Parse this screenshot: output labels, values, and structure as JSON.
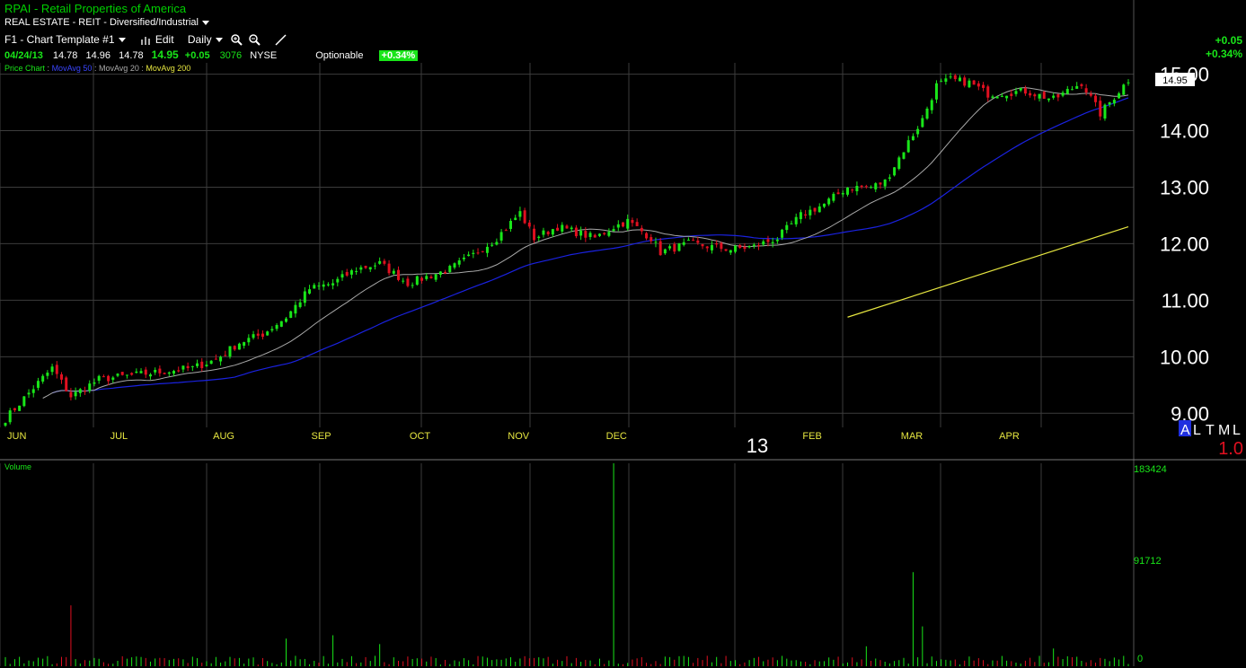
{
  "header": {
    "title": "RPAI - Retail Properties of America",
    "sector": "REAL ESTATE - REIT - Diversified/Industrial",
    "template": "F1 - Chart Template #1",
    "edit": "Edit",
    "period": "Daily",
    "quote": {
      "date": "04/24/13",
      "open": "14.78",
      "high": "14.96",
      "low": "14.78",
      "last": "14.95",
      "change": "+0.05",
      "volume": "3076",
      "exchange": "NYSE",
      "optionable": "Optionable",
      "pct_badge": "+0.34%"
    },
    "indicators": {
      "price_chart": "Price Chart",
      "sep": ":",
      "ma50": "MovAvg 50",
      "ma20": "MovAvg 20",
      "ma200": "MovAvg 200"
    },
    "right_change": "+0.05",
    "right_pct": "+0.34%"
  },
  "price_panel": {
    "current_label": "14.95",
    "year_label": "13",
    "timeframes": [
      "A",
      "L",
      "T",
      "M",
      "L"
    ],
    "scale_label": "1.0"
  },
  "volume_panel": {
    "label": "Volume",
    "max_label": "183424",
    "mid_label": "91712",
    "zero_label": "0"
  },
  "colors": {
    "up": "#19e619",
    "down": "#e01020",
    "ma20": "#a8a8a8",
    "ma50": "#1a22e0",
    "ma200": "#e6e640",
    "grid": "#3c3c3c",
    "month_label": "#e6e640"
  },
  "chart_data": {
    "type": "candlestick",
    "ylim": [
      8.75,
      15.2
    ],
    "yticks": [
      "9.00",
      "10.00",
      "11.00",
      "12.00",
      "13.00",
      "14.00",
      "15.00"
    ],
    "months": [
      "JUN",
      "JUL",
      "AUG",
      "SEP",
      "OCT",
      "NOV",
      "DEC",
      "FEB",
      "MAR",
      "APR"
    ],
    "anchors": [
      [
        0,
        8.9
      ],
      [
        6,
        9.45
      ],
      [
        10,
        9.8
      ],
      [
        14,
        9.3
      ],
      [
        20,
        9.6
      ],
      [
        30,
        9.7
      ],
      [
        40,
        9.8
      ],
      [
        45,
        9.95
      ],
      [
        50,
        10.25
      ],
      [
        55,
        10.4
      ],
      [
        60,
        10.7
      ],
      [
        65,
        11.2
      ],
      [
        70,
        11.3
      ],
      [
        75,
        11.55
      ],
      [
        80,
        11.65
      ],
      [
        86,
        11.3
      ],
      [
        95,
        11.55
      ],
      [
        100,
        11.8
      ],
      [
        105,
        12.1
      ],
      [
        110,
        12.55
      ],
      [
        113,
        12.1
      ],
      [
        118,
        12.3
      ],
      [
        126,
        12.1
      ],
      [
        130,
        12.3
      ],
      [
        133,
        12.4
      ],
      [
        138,
        12.1
      ],
      [
        140,
        11.85
      ],
      [
        146,
        12.0
      ],
      [
        155,
        11.9
      ],
      [
        160,
        11.95
      ],
      [
        165,
        12.1
      ],
      [
        170,
        12.5
      ],
      [
        175,
        12.7
      ],
      [
        180,
        13.0
      ],
      [
        185,
        13.0
      ],
      [
        188,
        13.1
      ],
      [
        193,
        13.8
      ],
      [
        196,
        14.2
      ],
      [
        199,
        14.8
      ],
      [
        202,
        14.9
      ],
      [
        206,
        14.85
      ],
      [
        210,
        14.65
      ],
      [
        218,
        14.7
      ],
      [
        224,
        14.55
      ],
      [
        230,
        14.85
      ],
      [
        234,
        14.3
      ],
      [
        236,
        14.5
      ],
      [
        240,
        14.9
      ]
    ],
    "ma200": [
      [
        180,
        10.7
      ],
      [
        240,
        12.3
      ]
    ],
    "volume_spikes": [
      [
        14,
        55000
      ],
      [
        60,
        25000
      ],
      [
        70,
        28000
      ],
      [
        80,
        20000
      ],
      [
        130,
        183424
      ],
      [
        184,
        18000
      ],
      [
        194,
        85000
      ],
      [
        196,
        36000
      ],
      [
        224,
        16000
      ]
    ]
  }
}
